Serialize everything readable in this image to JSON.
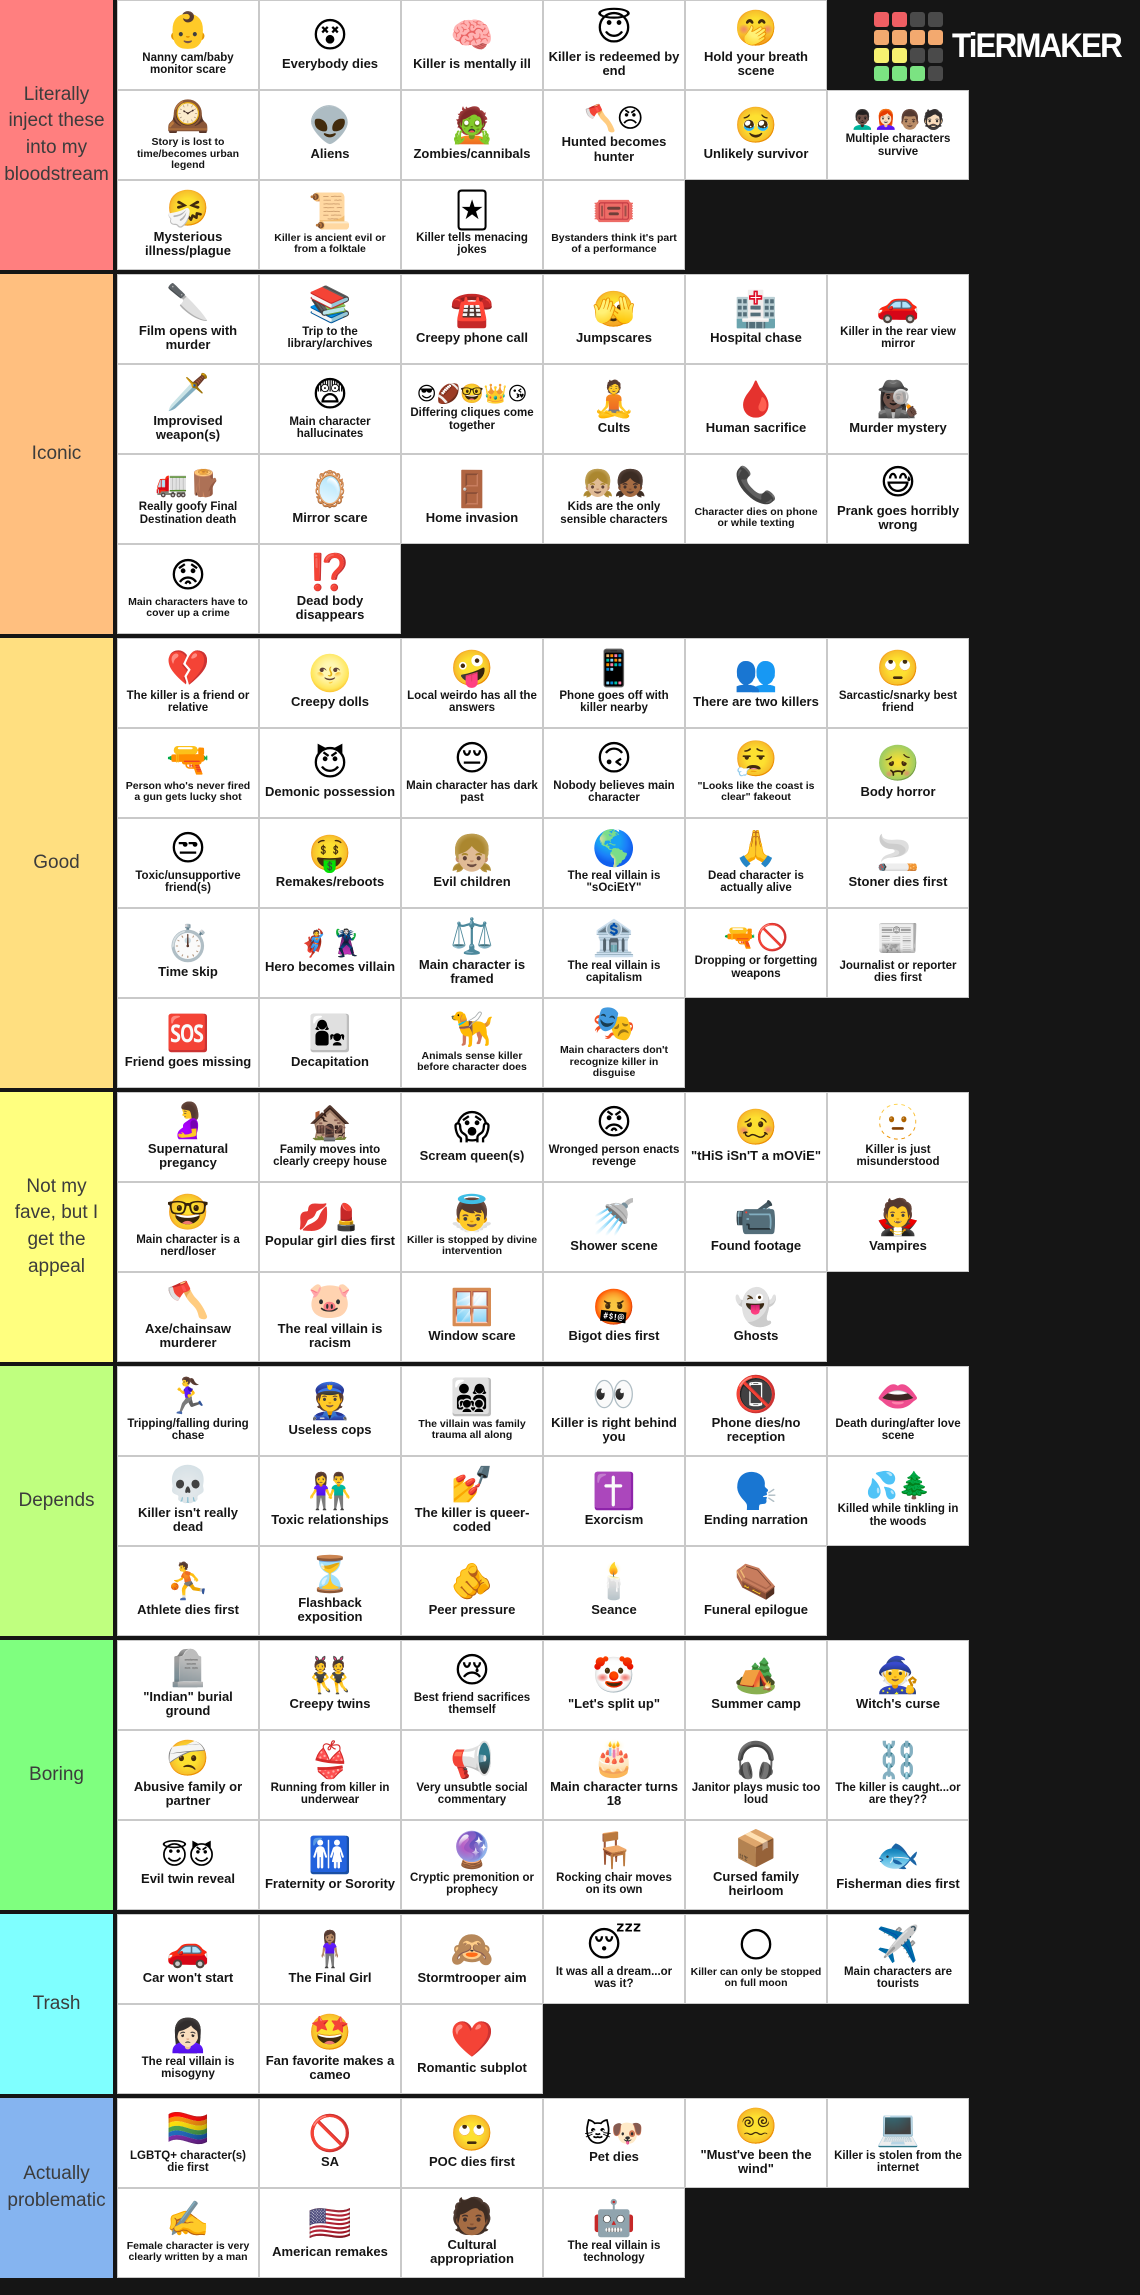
{
  "brand": {
    "name": "TiERMAKER",
    "logo_grid": [
      [
        "red",
        "red",
        "gray",
        "gray"
      ],
      [
        "orange",
        "orange",
        "orange",
        "orange"
      ],
      [
        "yellow",
        "yellow",
        "gray",
        "gray"
      ],
      [
        "green",
        "green",
        "green",
        "gray"
      ]
    ],
    "logo_colors": {
      "red": "#ef5e63",
      "orange": "#f3a96f",
      "yellow": "#f6f170",
      "green": "#7be382",
      "gray": "#4a4a4a"
    }
  },
  "board": {
    "background": "#151515",
    "cell_background": "#ffffff"
  },
  "tiers": [
    {
      "label": "Literally inject these into my bloodstream",
      "color": "#FF7F7F",
      "rows": [
        [
          {
            "emoji": [
              "👶"
            ],
            "label": "Nanny cam/baby monitor scare"
          },
          {
            "emoji": [
              "😵"
            ],
            "label": "Everybody dies"
          },
          {
            "emoji": [
              "🧠"
            ],
            "label": "Killer is mentally ill"
          },
          {
            "emoji": [
              "😇"
            ],
            "label": "Killer is redeemed by end"
          },
          {
            "emoji": [
              "🤭"
            ],
            "label": "Hold your breath scene"
          }
        ],
        [
          {
            "emoji": [
              "🕰️"
            ],
            "label": "Story is lost to time/becomes urban legend"
          },
          {
            "emoji": [
              "👽"
            ],
            "label": "Aliens"
          },
          {
            "emoji": [
              "🧟"
            ],
            "label": "Zombies/cannibals"
          },
          {
            "emoji": [
              "🪓",
              "😠"
            ],
            "label": "Hunted becomes hunter"
          },
          {
            "emoji": [
              "🥹"
            ],
            "label": "Unlikely survivor"
          },
          {
            "emoji": [
              "👨🏿‍🦱",
              "👩🏻‍🦰",
              "👨🏽",
              "🧔🏻"
            ],
            "label": "Multiple characters survive"
          }
        ],
        [
          {
            "emoji": [
              "🤧"
            ],
            "label": "Mysterious illness/plague"
          },
          {
            "emoji": [
              "📜"
            ],
            "label": "Killer is ancient evil or from a folktale"
          },
          {
            "emoji": [
              "🃏"
            ],
            "label": "Killer tells menacing jokes"
          },
          {
            "emoji": [
              "🎟️"
            ],
            "label": "Bystanders think it's part of a performance"
          }
        ]
      ]
    },
    {
      "label": "Iconic",
      "color": "#FFBF7F",
      "rows": [
        [
          {
            "emoji": [
              "🔪"
            ],
            "label": "Film opens with murder"
          },
          {
            "emoji": [
              "📚"
            ],
            "label": "Trip to the library/archives"
          },
          {
            "emoji": [
              "☎️"
            ],
            "label": "Creepy phone call"
          },
          {
            "emoji": [
              "🫣"
            ],
            "label": "Jumpscares"
          },
          {
            "emoji": [
              "🏥"
            ],
            "label": "Hospital chase"
          },
          {
            "emoji": [
              "🚗"
            ],
            "label": "Killer in the rear view mirror"
          }
        ],
        [
          {
            "emoji": [
              "🗡️"
            ],
            "label": "Improvised weapon(s)"
          },
          {
            "emoji": [
              "😨"
            ],
            "label": "Main character hallucinates"
          },
          {
            "emoji": [
              "😎",
              "🏈",
              "🤓",
              "👑",
              "😘"
            ],
            "label": "Differing cliques come together"
          },
          {
            "emoji": [
              "🧘"
            ],
            "label": "Cults"
          },
          {
            "emoji": [
              "🩸"
            ],
            "label": "Human sacrifice"
          },
          {
            "emoji": [
              "🕵🏿‍♀️"
            ],
            "label": "Murder mystery"
          }
        ],
        [
          {
            "emoji": [
              "🚛",
              "🪵"
            ],
            "label": "Really goofy Final Destination death"
          },
          {
            "emoji": [
              "🪞"
            ],
            "label": "Mirror scare"
          },
          {
            "emoji": [
              "🚪"
            ],
            "label": "Home invasion"
          },
          {
            "emoji": [
              "👧🏼",
              "👧🏾"
            ],
            "label": "Kids are the only sensible characters"
          },
          {
            "emoji": [
              "📞"
            ],
            "label": "Character dies on phone or while texting"
          },
          {
            "emoji": [
              "😅"
            ],
            "label": "Prank goes horribly wrong"
          }
        ],
        [
          {
            "emoji": [
              "😟"
            ],
            "label": "Main characters have to cover up a crime"
          },
          {
            "emoji": [
              "⁉️"
            ],
            "label": "Dead body disappears"
          }
        ]
      ]
    },
    {
      "label": "Good",
      "color": "#FFDF80",
      "rows": [
        [
          {
            "emoji": [
              "💔"
            ],
            "label": "The killer is a friend or relative"
          },
          {
            "emoji": [
              "🌝"
            ],
            "label": "Creepy dolls"
          },
          {
            "emoji": [
              "🤪"
            ],
            "label": "Local weirdo has all the answers"
          },
          {
            "emoji": [
              "📱"
            ],
            "label": "Phone goes off with killer nearby"
          },
          {
            "emoji": [
              "👥"
            ],
            "label": "There are two killers"
          },
          {
            "emoji": [
              "🙄"
            ],
            "label": "Sarcastic/snarky best friend"
          }
        ],
        [
          {
            "emoji": [
              "🔫"
            ],
            "label": "Person who's never fired a gun gets lucky shot"
          },
          {
            "emoji": [
              "😈"
            ],
            "label": "Demonic possession"
          },
          {
            "emoji": [
              "😔"
            ],
            "label": "Main character has dark past"
          },
          {
            "emoji": [
              "🙃"
            ],
            "label": "Nobody believes main character"
          },
          {
            "emoji": [
              "😮‍💨"
            ],
            "label": "\"Looks like the coast is clear\" fakeout"
          },
          {
            "emoji": [
              "🤢"
            ],
            "label": "Body horror"
          }
        ],
        [
          {
            "emoji": [
              "😒"
            ],
            "label": "Toxic/unsupportive friend(s)"
          },
          {
            "emoji": [
              "🤑"
            ],
            "label": "Remakes/reboots"
          },
          {
            "emoji": [
              "👧🏼"
            ],
            "label": "Evil children"
          },
          {
            "emoji": [
              "🌎"
            ],
            "label": "The real villain is \"sOciEtY\""
          },
          {
            "emoji": [
              "🙏"
            ],
            "label": "Dead character is actually alive"
          },
          {
            "emoji": [
              "🚬"
            ],
            "label": "Stoner dies first"
          }
        ],
        [
          {
            "emoji": [
              "⏱️"
            ],
            "label": "Time skip"
          },
          {
            "emoji": [
              "🦸",
              "🦹"
            ],
            "label": "Hero becomes villain"
          },
          {
            "emoji": [
              "⚖️"
            ],
            "label": "Main character is framed"
          },
          {
            "emoji": [
              "🏦"
            ],
            "label": "The real villain is capitalism"
          },
          {
            "emoji": [
              "🔫",
              "🚫"
            ],
            "label": "Dropping or forgetting weapons"
          },
          {
            "emoji": [
              "📰"
            ],
            "label": "Journalist or reporter dies first"
          }
        ],
        [
          {
            "emoji": [
              "🆘"
            ],
            "label": "Friend goes missing"
          },
          {
            "emoji": [
              "👩‍👧"
            ],
            "label": "Decapitation"
          },
          {
            "emoji": [
              "🦮"
            ],
            "label": "Animals sense killer before character does"
          },
          {
            "emoji": [
              "🎭"
            ],
            "label": "Main characters don't recognize killer in disguise"
          }
        ]
      ]
    },
    {
      "label": "Not my fave, but I get the appeal",
      "color": "#FFFF7F",
      "rows": [
        [
          {
            "emoji": [
              "🤰"
            ],
            "label": "Supernatural pregancy"
          },
          {
            "emoji": [
              "🏚️"
            ],
            "label": "Family moves into clearly creepy house"
          },
          {
            "emoji": [
              "😱"
            ],
            "label": "Scream queen(s)"
          },
          {
            "emoji": [
              "😡"
            ],
            "label": "Wronged person enacts revenge"
          },
          {
            "emoji": [
              "🥴"
            ],
            "label": "\"tHiS iSn'T a mOViE\""
          },
          {
            "emoji": [
              "🫥"
            ],
            "label": "Killer is just misunderstood"
          }
        ],
        [
          {
            "emoji": [
              "🤓"
            ],
            "label": "Main character is a nerd/loser"
          },
          {
            "emoji": [
              "💋",
              "💄"
            ],
            "label": "Popular girl dies first"
          },
          {
            "emoji": [
              "👼"
            ],
            "label": "Killer is stopped by divine intervention"
          },
          {
            "emoji": [
              "🚿"
            ],
            "label": "Shower scene"
          },
          {
            "emoji": [
              "📹"
            ],
            "label": "Found footage"
          },
          {
            "emoji": [
              "🧛"
            ],
            "label": "Vampires"
          }
        ],
        [
          {
            "emoji": [
              "🪓"
            ],
            "label": "Axe/chainsaw murderer"
          },
          {
            "emoji": [
              "🐷"
            ],
            "label": "The real villain is racism"
          },
          {
            "emoji": [
              "🪟"
            ],
            "label": "Window scare"
          },
          {
            "emoji": [
              "🤬"
            ],
            "label": "Bigot dies first"
          },
          {
            "emoji": [
              "👻"
            ],
            "label": "Ghosts"
          }
        ]
      ]
    },
    {
      "label": "Depends",
      "color": "#BFFF7F",
      "rows": [
        [
          {
            "emoji": [
              "🏃‍♀️"
            ],
            "label": "Tripping/falling during chase"
          },
          {
            "emoji": [
              "👮"
            ],
            "label": "Useless cops"
          },
          {
            "emoji": [
              "👨‍👩‍👧‍👦"
            ],
            "label": "The villain was family trauma all along"
          },
          {
            "emoji": [
              "👀"
            ],
            "label": "Killer is right behind you"
          },
          {
            "emoji": [
              "📵"
            ],
            "label": "Phone dies/no reception"
          },
          {
            "emoji": [
              "👄"
            ],
            "label": "Death during/after love scene"
          }
        ],
        [
          {
            "emoji": [
              "💀"
            ],
            "label": "Killer isn't really dead"
          },
          {
            "emoji": [
              "👫"
            ],
            "label": "Toxic relationships"
          },
          {
            "emoji": [
              "💅"
            ],
            "label": "The killer is queer-coded"
          },
          {
            "emoji": [
              "✝️"
            ],
            "label": "Exorcism"
          },
          {
            "emoji": [
              "🗣️"
            ],
            "label": "Ending narration"
          },
          {
            "emoji": [
              "💦",
              "🌲"
            ],
            "label": "Killed while tinkling in the woods"
          }
        ],
        [
          {
            "emoji": [
              "⛹️"
            ],
            "label": "Athlete dies first"
          },
          {
            "emoji": [
              "⏳"
            ],
            "label": "Flashback exposition"
          },
          {
            "emoji": [
              "🫵"
            ],
            "label": "Peer pressure"
          },
          {
            "emoji": [
              "🕯️"
            ],
            "label": "Seance"
          },
          {
            "emoji": [
              "⚰️"
            ],
            "label": "Funeral epilogue"
          }
        ]
      ]
    },
    {
      "label": "Boring",
      "color": "#7FFF7F",
      "rows": [
        [
          {
            "emoji": [
              "🪦"
            ],
            "label": "\"Indian\" burial ground"
          },
          {
            "emoji": [
              "👯"
            ],
            "label": "Creepy twins"
          },
          {
            "emoji": [
              "😢"
            ],
            "label": "Best friend sacrifices themself"
          },
          {
            "emoji": [
              "🤡"
            ],
            "label": "\"Let's split up\""
          },
          {
            "emoji": [
              "🏕️"
            ],
            "label": "Summer camp"
          },
          {
            "emoji": [
              "🧙"
            ],
            "label": "Witch's curse"
          }
        ],
        [
          {
            "emoji": [
              "🤕"
            ],
            "label": "Abusive family or partner"
          },
          {
            "emoji": [
              "👙"
            ],
            "label": "Running from killer in underwear"
          },
          {
            "emoji": [
              "📢"
            ],
            "label": "Very unsubtle social commentary"
          },
          {
            "emoji": [
              "🎂"
            ],
            "label": "Main character turns 18"
          },
          {
            "emoji": [
              "🎧"
            ],
            "label": "Janitor plays music too loud"
          },
          {
            "emoji": [
              "⛓️"
            ],
            "label": "The killer is caught...or are they??"
          }
        ],
        [
          {
            "emoji": [
              "😇",
              "😈"
            ],
            "label": "Evil twin reveal"
          },
          {
            "emoji": [
              "🚻"
            ],
            "label": "Fraternity or Sorority"
          },
          {
            "emoji": [
              "🔮"
            ],
            "label": "Cryptic premonition or prophecy"
          },
          {
            "emoji": [
              "🪑"
            ],
            "label": "Rocking chair moves on its own"
          },
          {
            "emoji": [
              "📦"
            ],
            "label": "Cursed family heirloom"
          },
          {
            "emoji": [
              "🐟"
            ],
            "label": "Fisherman dies first"
          }
        ]
      ]
    },
    {
      "label": "Trash",
      "color": "#7FFFFF",
      "rows": [
        [
          {
            "emoji": [
              "🚗"
            ],
            "label": "Car won't start"
          },
          {
            "emoji": [
              "🧍🏽‍♀️"
            ],
            "label": "The Final Girl"
          },
          {
            "emoji": [
              "🙈"
            ],
            "label": "Stormtrooper aim"
          },
          {
            "emoji": [
              "😴"
            ],
            "label": "It was all a dream...or was it?"
          },
          {
            "emoji": [
              "🌕"
            ],
            "label": "Killer can only be stopped on full moon"
          },
          {
            "emoji": [
              "✈️"
            ],
            "label": "Main characters are tourists"
          }
        ],
        [
          {
            "emoji": [
              "🙍🏻‍♀️"
            ],
            "label": "The real villain is misogyny"
          },
          {
            "emoji": [
              "🤩"
            ],
            "label": "Fan favorite makes a cameo"
          },
          {
            "emoji": [
              "❤️"
            ],
            "label": "Romantic subplot"
          }
        ]
      ]
    },
    {
      "label": "Actually problematic",
      "color": "#85B4F0",
      "rows": [
        [
          {
            "emoji": [
              "🏳️‍🌈"
            ],
            "label": "LGBTQ+ character(s) die first"
          },
          {
            "emoji": [
              "🚫"
            ],
            "label": "SA"
          },
          {
            "emoji": [
              "🙄"
            ],
            "label": "POC dies first"
          },
          {
            "emoji": [
              "🐱",
              "🐶"
            ],
            "label": "Pet dies"
          },
          {
            "emoji": [
              "😵‍💫"
            ],
            "label": "\"Must've been the wind\""
          },
          {
            "emoji": [
              "💻"
            ],
            "label": "Killer is stolen from the internet"
          }
        ],
        [
          {
            "emoji": [
              "✍️"
            ],
            "label": "Female character is very clearly written by a man"
          },
          {
            "emoji": [
              "🇺🇸"
            ],
            "label": "American remakes"
          },
          {
            "emoji": [
              "🧑🏾"
            ],
            "label": "Cultural appropriation"
          },
          {
            "emoji": [
              "🤖"
            ],
            "label": "The real villain is technology"
          }
        ]
      ]
    }
  ]
}
